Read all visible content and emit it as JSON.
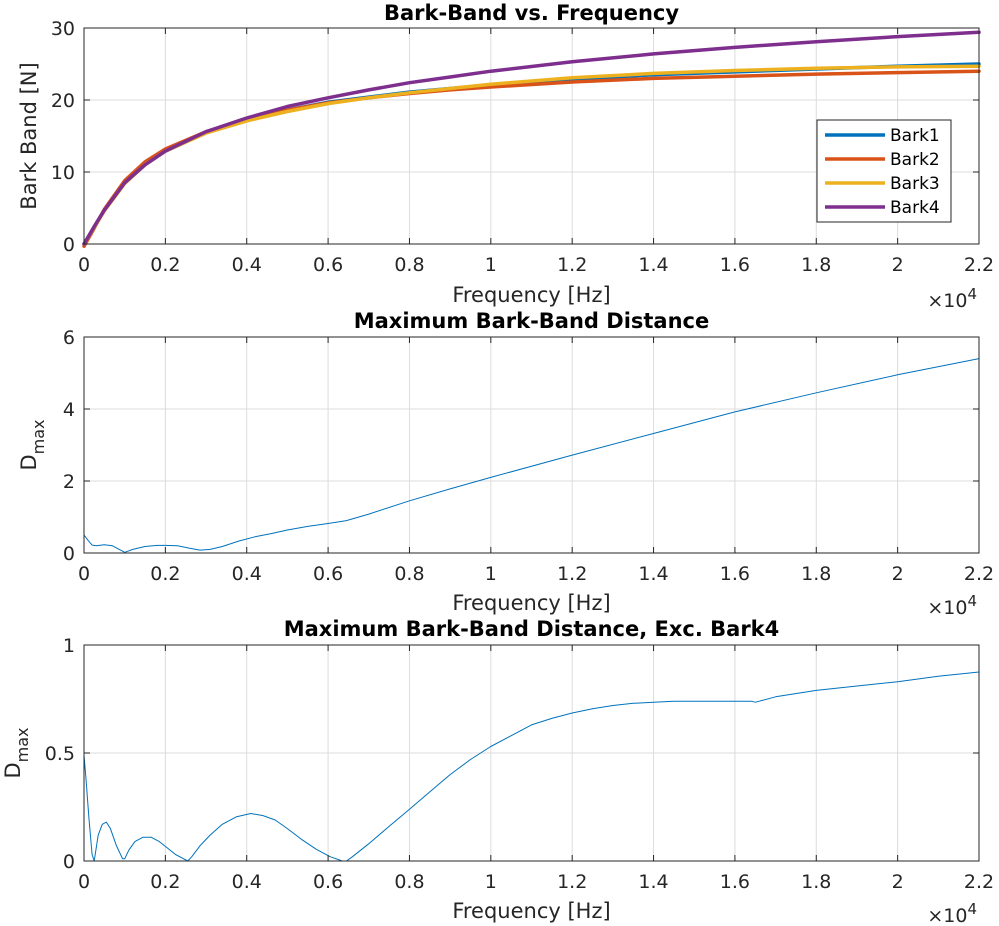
{
  "chart_data": [
    {
      "type": "line",
      "title": "Bark-Band vs. Frequency",
      "xlabel": "Frequency [Hz]",
      "ylabel": "Bark Band [N]",
      "x_exponent_base": "×10",
      "x_exponent_power": "4",
      "xlim": [
        0,
        22000
      ],
      "ylim": [
        0,
        30
      ],
      "xticks": [
        0,
        2000,
        4000,
        6000,
        8000,
        10000,
        12000,
        14000,
        16000,
        18000,
        20000,
        22000
      ],
      "xtick_labels": [
        "0",
        "0.2",
        "0.4",
        "0.6",
        "0.8",
        "1",
        "1.2",
        "1.4",
        "1.6",
        "1.8",
        "2",
        "2.2"
      ],
      "yticks": [
        0,
        10,
        20,
        30
      ],
      "ytick_labels": [
        "0",
        "10",
        "20",
        "30"
      ],
      "grid": true,
      "legend": "right",
      "series": [
        {
          "name": "Bark1",
          "color": "#0072BD",
          "x": [
            0,
            250,
            500,
            1000,
            1500,
            2000,
            3000,
            4000,
            5000,
            6000,
            7000,
            8000,
            9000,
            10000,
            12000,
            14000,
            16000,
            18000,
            20000,
            22000
          ],
          "y": [
            0,
            2.4,
            4.7,
            8.5,
            11.0,
            12.9,
            15.5,
            17.3,
            18.6,
            19.7,
            20.4,
            21.1,
            21.6,
            22.1,
            22.9,
            23.5,
            23.9,
            24.3,
            24.7,
            25.0
          ]
        },
        {
          "name": "Bark2",
          "color": "#D95319",
          "x": [
            0,
            250,
            500,
            1000,
            1500,
            2000,
            3000,
            4000,
            5000,
            6000,
            7000,
            8000,
            9000,
            10000,
            12000,
            14000,
            16000,
            18000,
            20000,
            22000
          ],
          "y": [
            -0.3,
            2.2,
            4.8,
            8.8,
            11.4,
            13.2,
            15.6,
            17.3,
            18.6,
            19.6,
            20.3,
            20.9,
            21.4,
            21.8,
            22.5,
            23.0,
            23.3,
            23.6,
            23.8,
            24.0
          ]
        },
        {
          "name": "Bark3",
          "color": "#EDB120",
          "x": [
            0,
            250,
            500,
            1000,
            1500,
            2000,
            3000,
            4000,
            5000,
            6000,
            7000,
            8000,
            9000,
            10000,
            12000,
            14000,
            16000,
            18000,
            20000,
            22000
          ],
          "y": [
            0,
            2.3,
            4.6,
            8.4,
            11.0,
            12.9,
            15.4,
            17.1,
            18.4,
            19.5,
            20.3,
            21.0,
            21.6,
            22.2,
            23.1,
            23.7,
            24.1,
            24.4,
            24.6,
            24.7
          ]
        },
        {
          "name": "Bark4",
          "color": "#7E2F8E",
          "x": [
            0,
            250,
            500,
            1000,
            1500,
            2000,
            3000,
            4000,
            5000,
            6000,
            7000,
            8000,
            9000,
            10000,
            12000,
            14000,
            16000,
            18000,
            20000,
            22000
          ],
          "y": [
            0,
            2.4,
            4.7,
            8.5,
            11.0,
            12.9,
            15.6,
            17.5,
            19.1,
            20.3,
            21.4,
            22.4,
            23.2,
            24.0,
            25.3,
            26.4,
            27.3,
            28.1,
            28.8,
            29.4
          ]
        }
      ]
    },
    {
      "type": "line",
      "title": "Maximum Bark-Band Distance",
      "xlabel": "Frequency [Hz]",
      "ylabel": "D",
      "ylabel_subscript": "max",
      "x_exponent_base": "×10",
      "x_exponent_power": "4",
      "xlim": [
        0,
        22000
      ],
      "ylim": [
        0,
        6
      ],
      "xticks": [
        0,
        2000,
        4000,
        6000,
        8000,
        10000,
        12000,
        14000,
        16000,
        18000,
        20000,
        22000
      ],
      "xtick_labels": [
        "0",
        "0.2",
        "0.4",
        "0.6",
        "0.8",
        "1",
        "1.2",
        "1.4",
        "1.6",
        "1.8",
        "2",
        "2.2"
      ],
      "yticks": [
        0,
        2,
        4,
        6
      ],
      "ytick_labels": [
        "0",
        "2",
        "4",
        "6"
      ],
      "grid": true,
      "series": [
        {
          "color": "#0072BD",
          "x": [
            0,
            100,
            200,
            300,
            500,
            700,
            1000,
            1200,
            1500,
            1800,
            2000,
            2300,
            2600,
            2850,
            3100,
            3400,
            3800,
            4200,
            4600,
            5000,
            5500,
            6000,
            6450,
            7000,
            8000,
            9000,
            10000,
            12000,
            14000,
            16000,
            18000,
            20000,
            22000
          ],
          "y": [
            0.5,
            0.35,
            0.22,
            0.2,
            0.23,
            0.2,
            0.02,
            0.1,
            0.18,
            0.21,
            0.21,
            0.2,
            0.13,
            0.08,
            0.1,
            0.18,
            0.33,
            0.45,
            0.54,
            0.64,
            0.74,
            0.82,
            0.9,
            1.08,
            1.45,
            1.78,
            2.1,
            2.72,
            3.32,
            3.92,
            4.45,
            4.95,
            5.4
          ]
        }
      ]
    },
    {
      "type": "line",
      "title": "Maximum Bark-Band Distance, Exc. Bark4",
      "xlabel": "Frequency [Hz]",
      "ylabel": "D",
      "ylabel_subscript": "max",
      "x_exponent_base": "×10",
      "x_exponent_power": "4",
      "xlim": [
        0,
        22000
      ],
      "ylim": [
        0,
        1
      ],
      "xticks": [
        0,
        2000,
        4000,
        6000,
        8000,
        10000,
        12000,
        14000,
        16000,
        18000,
        20000,
        22000
      ],
      "xtick_labels": [
        "0",
        "0.2",
        "0.4",
        "0.6",
        "0.8",
        "1",
        "1.2",
        "1.4",
        "1.6",
        "1.8",
        "2",
        "2.2"
      ],
      "yticks": [
        0,
        0.5,
        1
      ],
      "ytick_labels": [
        "0",
        "0.5",
        "1"
      ],
      "grid": true,
      "series": [
        {
          "color": "#0072BD",
          "x": [
            0,
            50,
            120,
            200,
            250,
            350,
            450,
            550,
            650,
            800,
            950,
            1000,
            1100,
            1250,
            1450,
            1650,
            1850,
            2050,
            2250,
            2450,
            2550,
            2650,
            2850,
            3100,
            3400,
            3750,
            4100,
            4400,
            4700,
            5000,
            5350,
            5700,
            6050,
            6350,
            6450,
            6600,
            7000,
            7500,
            8000,
            8500,
            9000,
            9500,
            10000,
            10500,
            11000,
            11500,
            12000,
            12500,
            13000,
            13500,
            14000,
            14500,
            15000,
            15500,
            16000,
            16400,
            16500,
            16600,
            17000,
            18000,
            19000,
            20000,
            21000,
            22000
          ],
          "y": [
            0.49,
            0.38,
            0.2,
            0.03,
            0.0,
            0.12,
            0.17,
            0.18,
            0.15,
            0.07,
            0.01,
            0.01,
            0.05,
            0.09,
            0.11,
            0.11,
            0.09,
            0.06,
            0.03,
            0.01,
            0.0,
            0.02,
            0.07,
            0.12,
            0.17,
            0.205,
            0.22,
            0.21,
            0.19,
            0.15,
            0.1,
            0.055,
            0.02,
            0.0,
            0.0,
            0.02,
            0.08,
            0.16,
            0.24,
            0.32,
            0.4,
            0.47,
            0.53,
            0.58,
            0.63,
            0.66,
            0.685,
            0.705,
            0.72,
            0.73,
            0.735,
            0.74,
            0.74,
            0.74,
            0.74,
            0.74,
            0.735,
            0.74,
            0.76,
            0.79,
            0.81,
            0.83,
            0.855,
            0.875
          ]
        }
      ]
    }
  ]
}
